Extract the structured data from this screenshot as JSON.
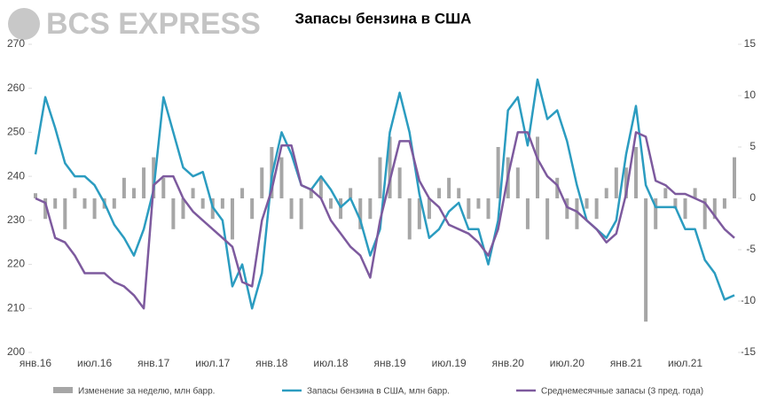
{
  "brand": "BCS EXPRESS",
  "chart_data": {
    "type": "combo",
    "title": "Запасы бензина в США",
    "categories": [
      "янв.16",
      null,
      null,
      null,
      null,
      null,
      "июл.16",
      null,
      null,
      null,
      null,
      null,
      "янв.17",
      null,
      null,
      null,
      null,
      null,
      "июл.17",
      null,
      null,
      null,
      null,
      null,
      "янв.18",
      null,
      null,
      null,
      null,
      null,
      "июл.18",
      null,
      null,
      null,
      null,
      null,
      "янв.19",
      null,
      null,
      null,
      null,
      null,
      "июл.19",
      null,
      null,
      null,
      null,
      null,
      "янв.20",
      null,
      null,
      null,
      null,
      null,
      "июл.20",
      null,
      null,
      null,
      null,
      null,
      "янв.21",
      null,
      null,
      null,
      null,
      null,
      "июл.21",
      null,
      null,
      null,
      null,
      null
    ],
    "ylim": [
      200,
      270
    ],
    "yticks": [
      200,
      210,
      220,
      230,
      240,
      250,
      260,
      270
    ],
    "y2lim": [
      -15,
      15
    ],
    "y2ticks": [
      -15,
      -10,
      -5,
      0,
      5,
      10,
      15
    ],
    "series": [
      {
        "name": "Изменение за неделю, млн барр.",
        "kind": "bar",
        "axis": "y2",
        "color": "#a6a6a6",
        "values": [
          0.5,
          -2,
          -1,
          -3,
          1,
          -1,
          -2,
          -1,
          -1,
          2,
          1,
          3,
          4,
          2,
          -3,
          -2,
          1,
          -1,
          -2,
          -1,
          -4,
          1,
          -2,
          3,
          5,
          4,
          -2,
          -3,
          1,
          2,
          -1,
          -2,
          1,
          -3,
          -2,
          4,
          6,
          3,
          -4,
          -3,
          -2,
          1,
          2,
          1,
          -2,
          -1,
          -2,
          5,
          4,
          3,
          -3,
          6,
          -4,
          2,
          -2,
          -3,
          -1,
          -2,
          1,
          3,
          3,
          5,
          -12,
          -3,
          1,
          -1,
          -2,
          1,
          -3,
          -2,
          -1,
          4
        ]
      },
      {
        "name": "Запасы бензина в США, млн барр.",
        "kind": "line",
        "color": "#2b9cc0",
        "values": [
          245,
          258,
          251,
          243,
          240,
          240,
          238,
          234,
          229,
          226,
          222,
          228,
          237,
          258,
          250,
          242,
          240,
          241,
          233,
          230,
          215,
          220,
          210,
          218,
          240,
          250,
          245,
          238,
          237,
          240,
          237,
          233,
          235,
          230,
          222,
          228,
          250,
          259,
          250,
          236,
          226,
          228,
          232,
          234,
          228,
          228,
          220,
          230,
          255,
          258,
          247,
          262,
          253,
          255,
          248,
          238,
          230,
          228,
          226,
          230,
          245,
          256,
          238,
          233,
          233,
          233,
          228,
          228,
          221,
          218,
          212,
          213
        ]
      },
      {
        "name": "Среднемесячные запасы (3 пред. года)",
        "kind": "line",
        "color": "#7d5a9e",
        "values": [
          235,
          234,
          226,
          225,
          222,
          218,
          218,
          218,
          216,
          215,
          213,
          210,
          238,
          240,
          240,
          235,
          232,
          230,
          228,
          226,
          224,
          216,
          215,
          230,
          237,
          247,
          247,
          238,
          237,
          235,
          230,
          227,
          224,
          222,
          217,
          230,
          239,
          248,
          248,
          239,
          235,
          233,
          229,
          228,
          227,
          225,
          222,
          228,
          240,
          250,
          250,
          244,
          240,
          238,
          233,
          232,
          230,
          228,
          225,
          227,
          236,
          250,
          249,
          239,
          238,
          236,
          236,
          235,
          234,
          231,
          228,
          226
        ]
      }
    ]
  }
}
